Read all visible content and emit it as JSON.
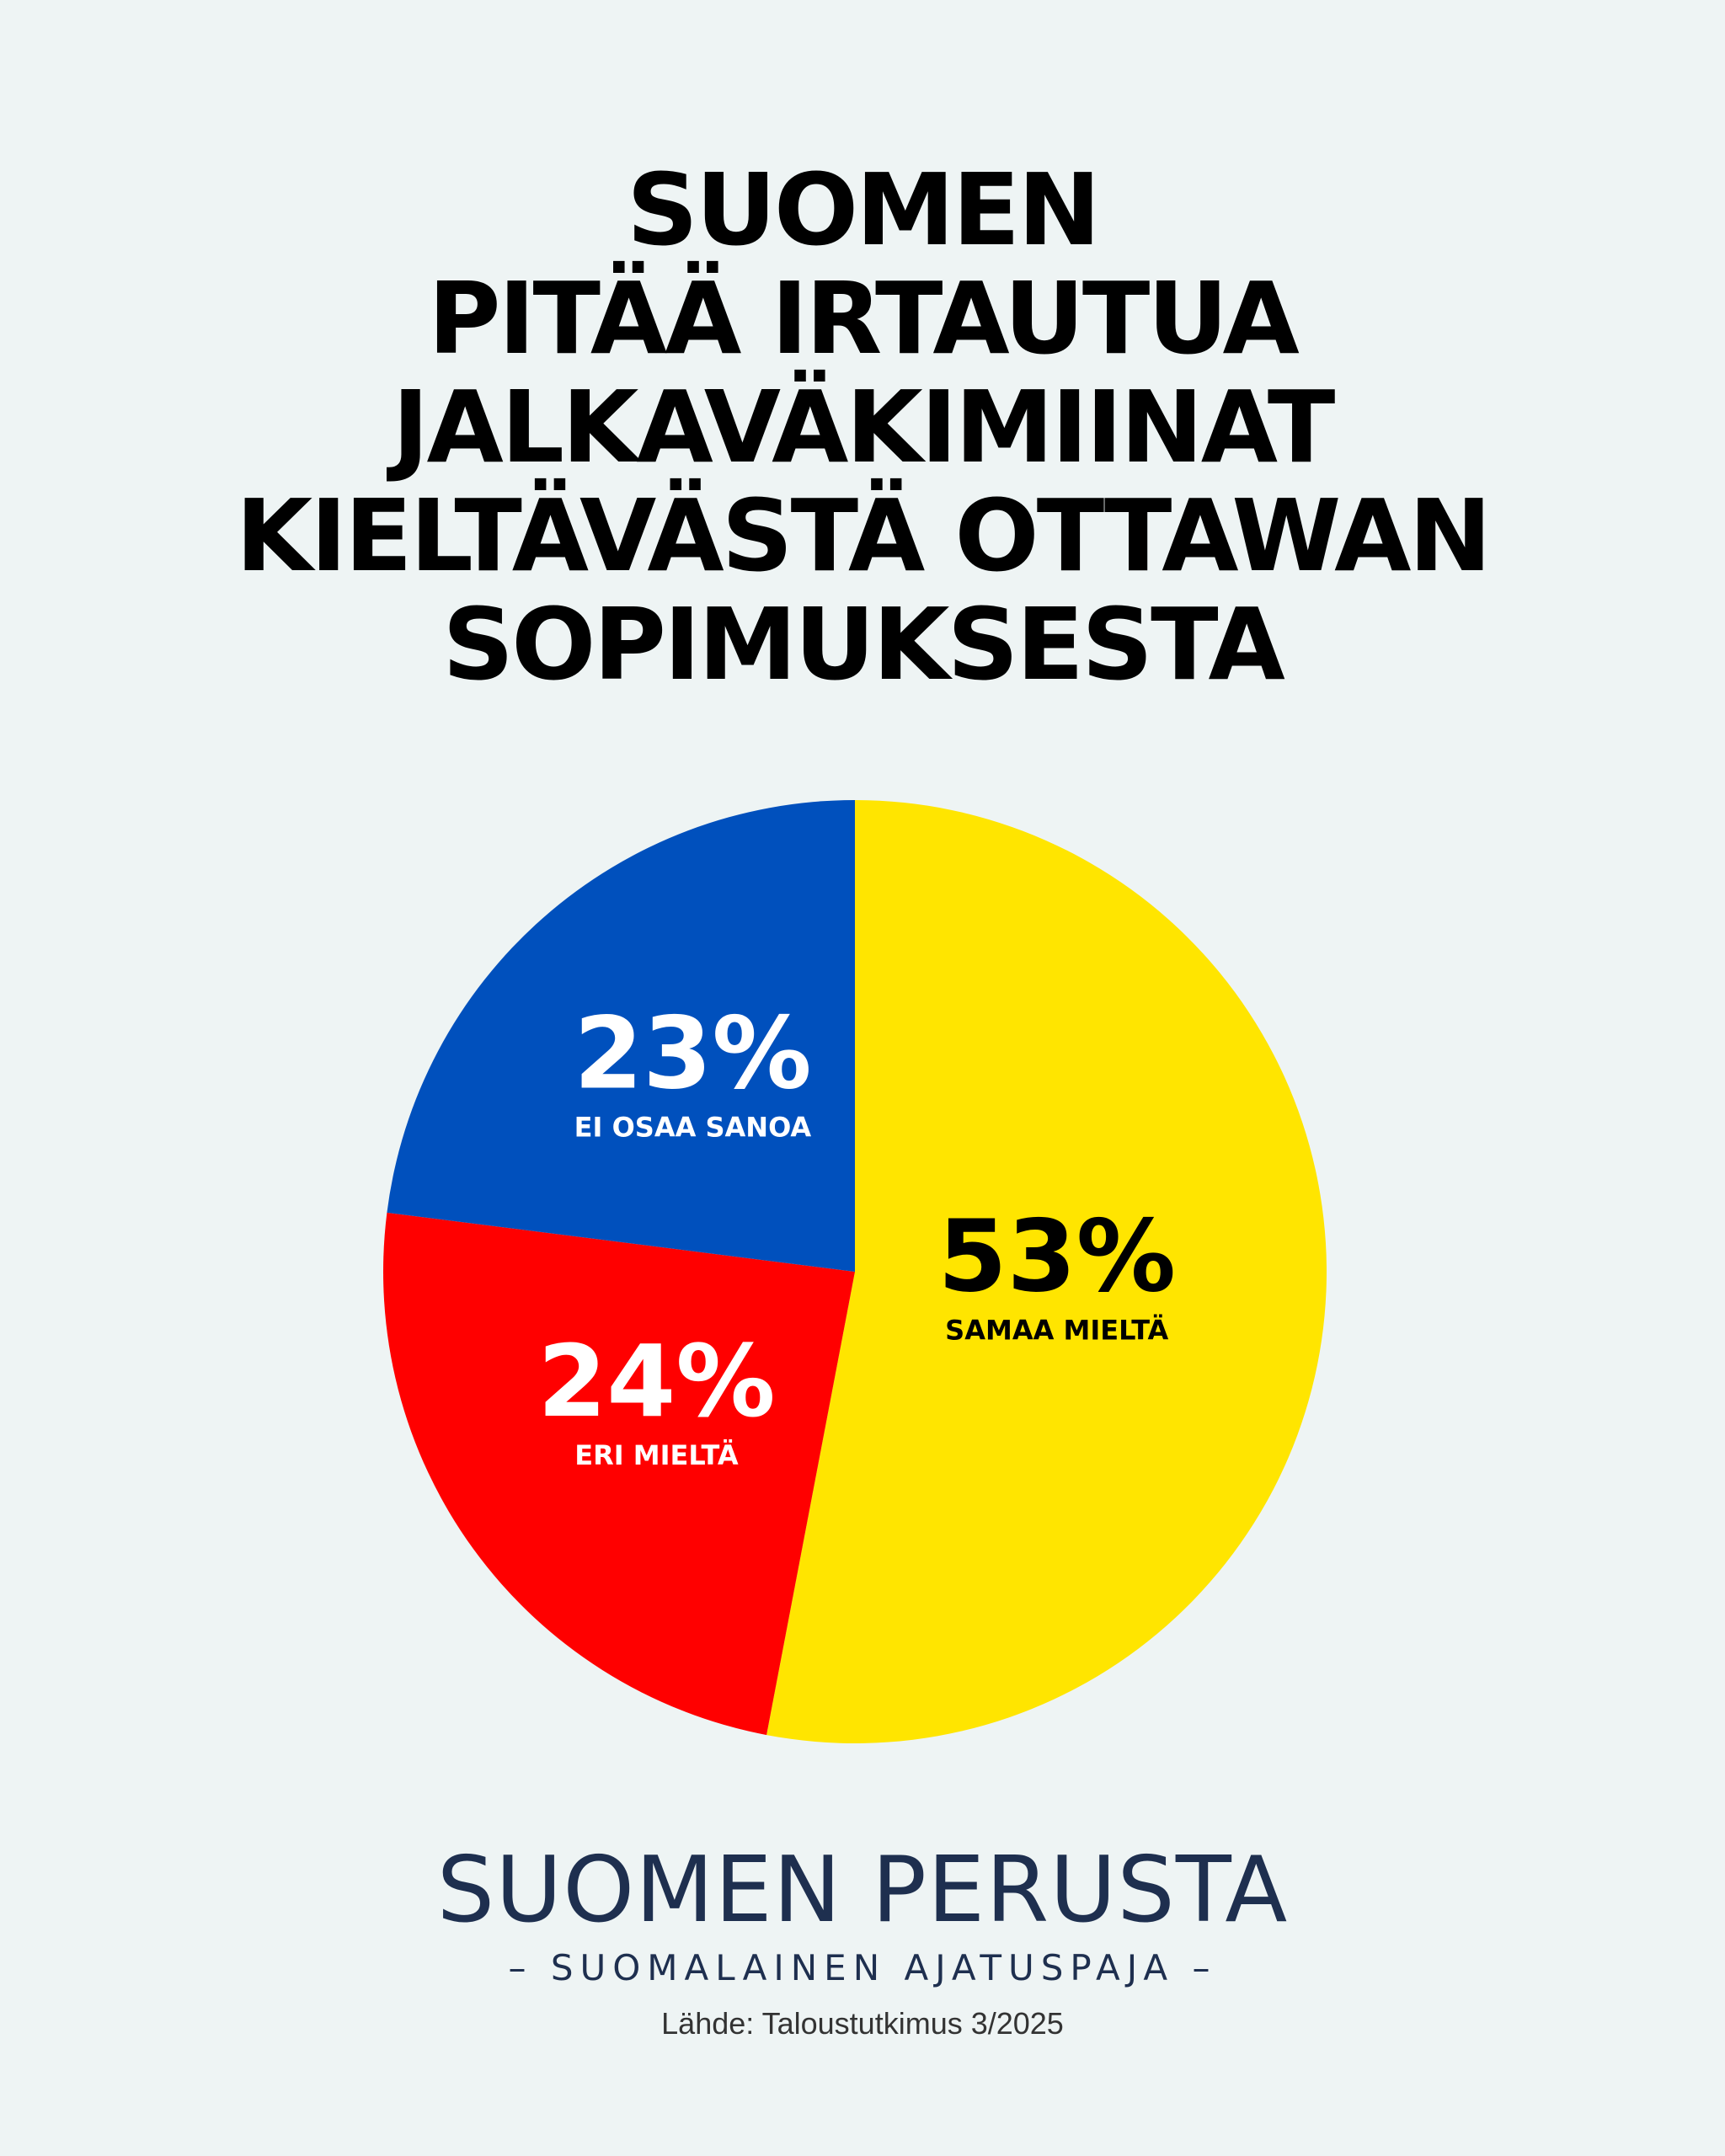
{
  "chart_data": {
    "type": "pie",
    "title_lines": [
      "SUOMEN",
      "PITÄÄ IRTAUTUA",
      "JALKAVÄKIMIINAT",
      "KIELTÄVÄSTÄ OTTAWAN",
      "SOPIMUKSESTA"
    ],
    "slices": [
      {
        "label": "SAMAA MIELTÄ",
        "value": 53,
        "value_label": "53%",
        "color": "#ffe500",
        "text_color": "#000000"
      },
      {
        "label": "ERI MIELTÄ",
        "value": 24,
        "value_label": "24%",
        "color": "#ff0000",
        "text_color": "#ffffff"
      },
      {
        "label": "EI OSAA SANOA",
        "value": 23,
        "value_label": "23%",
        "color": "#0050bd",
        "text_color": "#ffffff"
      }
    ]
  },
  "branding": {
    "name": "SUOMEN PERUSTA",
    "tagline": "– SUOMALAINEN AJATUSPAJA –"
  },
  "source": "Lähde: Taloustutkimus 3/2025"
}
